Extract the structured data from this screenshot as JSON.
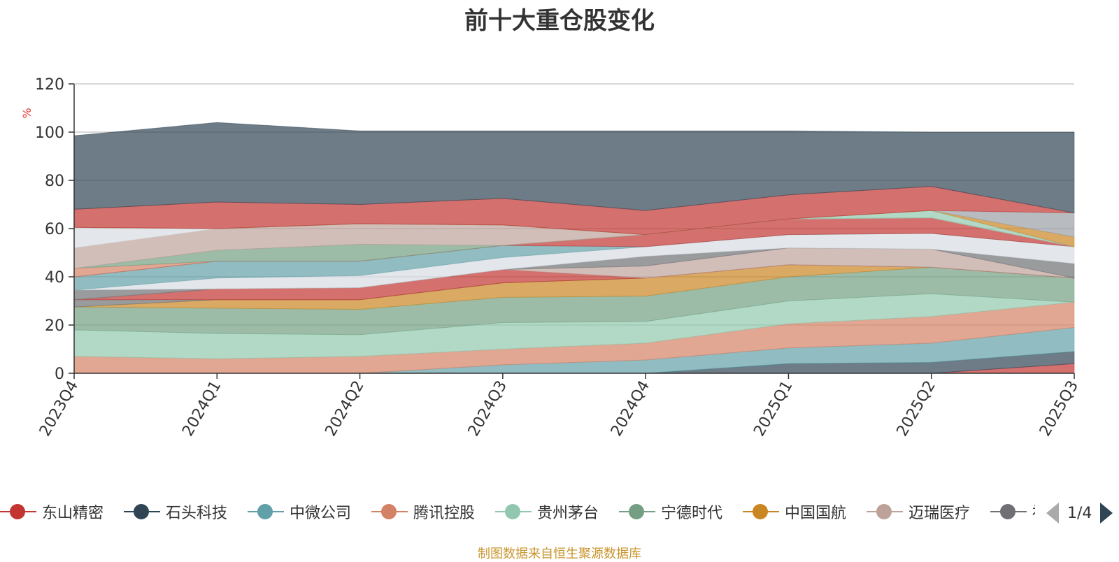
{
  "title": "前十大重仓股变化",
  "source_note": "制图数据来自恒生聚源数据库",
  "legend": {
    "items": [
      {
        "name": "东山精密",
        "color": "#c23531"
      },
      {
        "name": "石头科技",
        "color": "#2f4554"
      },
      {
        "name": "中微公司",
        "color": "#61a0a8"
      },
      {
        "name": "腾讯控股",
        "color": "#d48265"
      },
      {
        "name": "贵州茅台",
        "color": "#91c7ae"
      },
      {
        "name": "宁德时代",
        "color": "#749f83"
      },
      {
        "name": "中国国航",
        "color": "#ca8622"
      },
      {
        "name": "迈瑞医疗",
        "color": "#bda29a"
      },
      {
        "name": "福",
        "color": "#6e7074"
      }
    ],
    "page": "1/4"
  },
  "chart_data": {
    "type": "area",
    "stacked": true,
    "title": "前十大重仓股变化",
    "ylabel": "%",
    "ylim": [
      0,
      120
    ],
    "yticks": [
      0,
      20,
      40,
      60,
      80,
      100,
      120
    ],
    "grid": true,
    "legend_position": "bottom",
    "categories": [
      "2023Q4",
      "2024Q1",
      "2024Q2",
      "2024Q3",
      "2024Q4",
      "2025Q1",
      "2025Q2",
      "2025Q3"
    ],
    "layers": [
      {
        "color": "#c23531",
        "values": [
          0,
          0,
          0,
          0,
          0,
          0,
          0,
          4
        ]
      },
      {
        "color": "#2f4554",
        "values": [
          0,
          0,
          0,
          0,
          0,
          4,
          4.5,
          5
        ]
      },
      {
        "color": "#61a0a8",
        "values": [
          0,
          0,
          0,
          3.5,
          5.5,
          6.5,
          8,
          10
        ]
      },
      {
        "color": "#d48265",
        "values": [
          7,
          6,
          7,
          6.5,
          7,
          10,
          11,
          10.5
        ]
      },
      {
        "color": "#91c7ae",
        "values": [
          11,
          10.5,
          9,
          11,
          9,
          9.5,
          9.5,
          0
        ]
      },
      {
        "color": "#749f83",
        "values": [
          9.5,
          10.5,
          10.5,
          10.5,
          10.5,
          10,
          11,
          10
        ]
      },
      {
        "color": "#ca8622",
        "values": [
          0,
          3.5,
          4,
          6,
          7.5,
          5,
          0,
          0
        ]
      },
      {
        "color": "#6e7074",
        "values": [
          3,
          0,
          0,
          0,
          0,
          0,
          0,
          0
        ]
      },
      {
        "color": "#c23531",
        "values": [
          0,
          4.5,
          5,
          5.5,
          0,
          0,
          0,
          0
        ]
      },
      {
        "color": "#bda29a",
        "values": [
          0,
          0,
          0,
          0,
          5,
          7,
          7.5,
          0
        ]
      },
      {
        "color": "#6e7074",
        "values": [
          4,
          0,
          0,
          0,
          4,
          0,
          0,
          6
        ]
      },
      {
        "color": "#d7dde3",
        "values": [
          0,
          4.5,
          5,
          5,
          4,
          5.5,
          6.5,
          7
        ]
      },
      {
        "color": "#61a0a8",
        "values": [
          5.5,
          7,
          6,
          5,
          0,
          0,
          0,
          0
        ]
      },
      {
        "color": "#c23531",
        "values": [
          0,
          0,
          0,
          0,
          5,
          6.5,
          6.5,
          0
        ]
      },
      {
        "color": "#d48265",
        "values": [
          3.5,
          0,
          0,
          0,
          0,
          0,
          0,
          0
        ]
      },
      {
        "color": "#749f83",
        "values": [
          0,
          4.5,
          7,
          0,
          0,
          0,
          0,
          0
        ]
      },
      {
        "color": "#bda29a",
        "values": [
          8.5,
          9,
          8.5,
          8.5,
          0,
          0,
          0,
          0
        ]
      },
      {
        "color": "#d7dde3",
        "values": [
          8.5,
          0,
          0,
          0,
          0,
          0,
          0,
          0
        ]
      },
      {
        "color": "#91c7ae",
        "values": [
          0,
          0,
          0,
          0,
          0,
          0,
          3,
          0
        ]
      },
      {
        "color": "#ca8622",
        "values": [
          0,
          0,
          0,
          0,
          0,
          0,
          0,
          4
        ]
      },
      {
        "color": "#9a9ea4",
        "values": [
          0,
          0,
          0,
          0,
          0,
          0,
          0,
          10
        ]
      },
      {
        "color": "#c23531",
        "values": [
          7.5,
          11,
          8,
          11,
          10,
          10,
          10,
          0
        ]
      },
      {
        "color": "#2f4554",
        "values": [
          30.5,
          33,
          30.5,
          28,
          33,
          26.5,
          22.5,
          33.5
        ]
      }
    ]
  }
}
